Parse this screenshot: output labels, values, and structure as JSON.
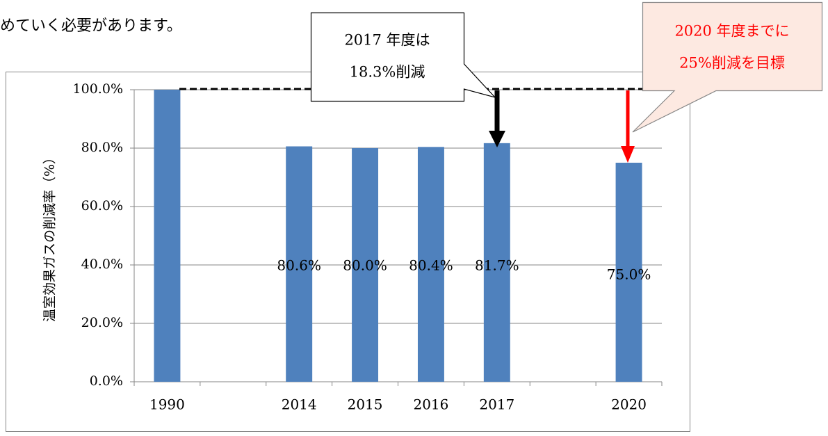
{
  "document": {
    "text": "めていく必要があります。"
  },
  "chart_data": {
    "type": "bar",
    "y_label": "温室効果ガスの削減率（%）",
    "categories": [
      "1990",
      null,
      "2014",
      "2015",
      "2016",
      "2017",
      null,
      "2020"
    ],
    "values": [
      100,
      null,
      80.6,
      80.0,
      80.4,
      81.7,
      null,
      75.0
    ],
    "value_labels": [
      null,
      null,
      "80.6%",
      "80.0%",
      "80.4%",
      "81.7%",
      null,
      "75.0%"
    ],
    "color": "#4f81bd",
    "ylim": [
      0,
      100
    ],
    "yticks": [
      {
        "value": 0,
        "label": "0.0%"
      },
      {
        "value": 20,
        "label": "20.0%"
      },
      {
        "value": 40,
        "label": "40.0%"
      },
      {
        "value": 60,
        "label": "60.0%"
      },
      {
        "value": 80,
        "label": "80.0%"
      },
      {
        "value": 100,
        "label": "100.0%"
      }
    ],
    "grid": true,
    "annotations": [
      {
        "lines": [
          "2017 年度は",
          "18.3%削減"
        ],
        "color": "#000000",
        "fill": "#ffffff"
      },
      {
        "lines": [
          "2020 年度までに",
          "25%削減を目標"
        ],
        "color": "#ff0000",
        "fill": "#fde9e1"
      }
    ]
  }
}
